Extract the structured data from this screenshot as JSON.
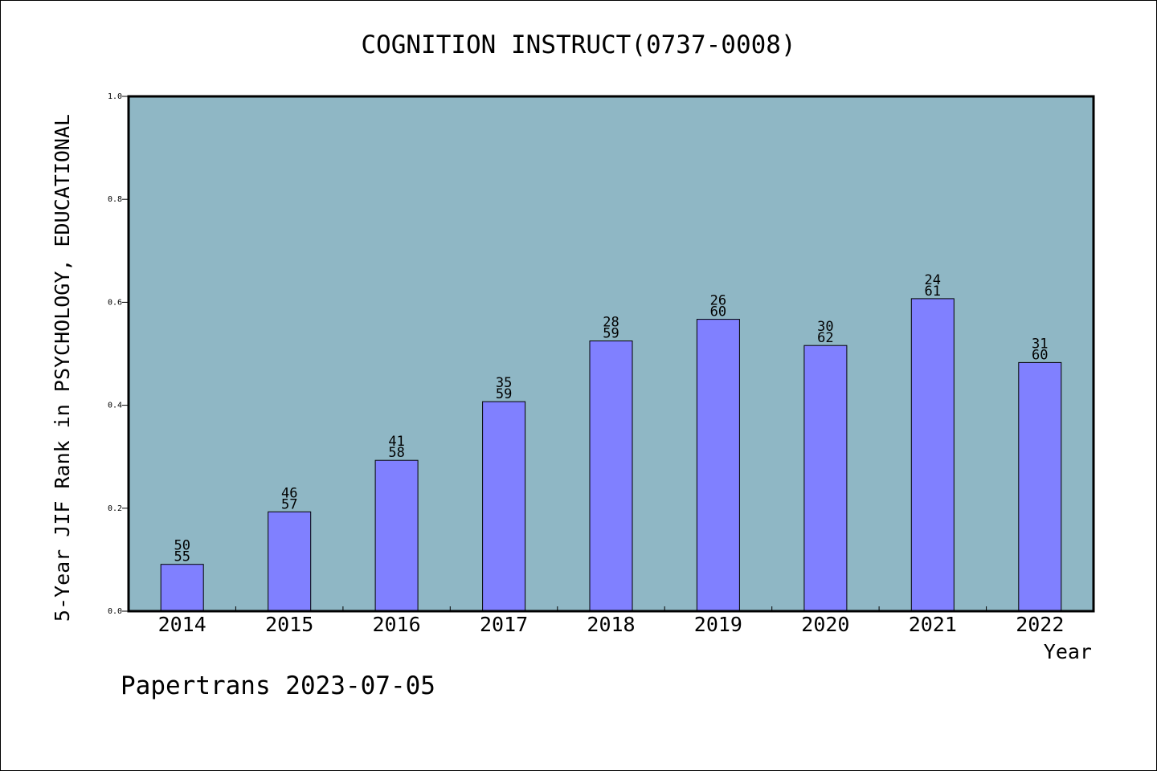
{
  "chart_data": {
    "type": "bar",
    "title": "COGNITION INSTRUCT(0737-0008)",
    "xlabel": "Year",
    "ylabel": "5-Year JIF Rank in PSYCHOLOGY, EDUCATIONAL",
    "ylim": [
      0,
      1.0
    ],
    "yticks": [
      "0.0",
      "0.2",
      "0.4",
      "0.6",
      "0.8",
      "1.0"
    ],
    "grid": false,
    "categories": [
      "2014",
      "2015",
      "2016",
      "2017",
      "2018",
      "2019",
      "2020",
      "2021",
      "2022"
    ],
    "values": [
      0.091,
      0.193,
      0.293,
      0.407,
      0.525,
      0.567,
      0.516,
      0.607,
      0.483
    ],
    "ranks": [
      "50",
      "46",
      "41",
      "35",
      "28",
      "26",
      "30",
      "24",
      "31"
    ],
    "totals": [
      "55",
      "57",
      "58",
      "59",
      "59",
      "60",
      "62",
      "61",
      "60"
    ],
    "colors": {
      "plot_background": "#8fb7c5",
      "bar_fill": "#8080ff",
      "bar_stroke": "#000000"
    }
  },
  "footer": {
    "text": "Papertrans 2023-07-05"
  }
}
